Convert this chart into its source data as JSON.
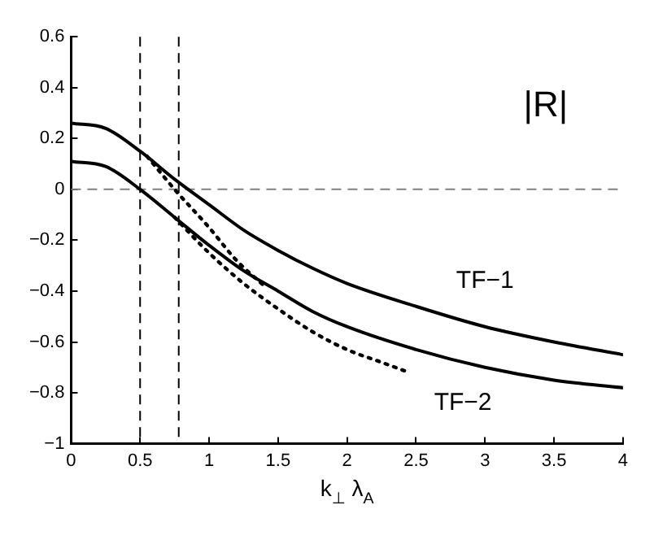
{
  "chart_data": {
    "type": "line",
    "title": "|R|",
    "xlabel": "k$_{⊥}$ λ$_{A}$",
    "xlim": [
      0,
      4
    ],
    "xticks": [
      0,
      0.5,
      1,
      1.5,
      2,
      2.5,
      3,
      3.5,
      4
    ],
    "ylim": [
      -1,
      0.6
    ],
    "yticks": [
      -1,
      -0.8,
      -0.6,
      -0.4,
      -0.2,
      0,
      0.2,
      0.4,
      0.6
    ],
    "grid": false,
    "legend": false,
    "marker": "none",
    "series": [
      {
        "color": "#000000",
        "line_style": "solid",
        "x": [
          0,
          0.25,
          0.5,
          0.75,
          1,
          1.25,
          1.5,
          1.75,
          2,
          2.5,
          3,
          3.5,
          4
        ],
        "values": [
          0.26,
          0.24,
          0.15,
          0.04,
          -0.06,
          -0.16,
          -0.24,
          -0.31,
          -0.37,
          -0.46,
          -0.54,
          -0.6,
          -0.65
        ]
      },
      {
        "color": "#000000",
        "line_style": "solid",
        "x": [
          0,
          0.25,
          0.5,
          0.75,
          1,
          1.25,
          1.5,
          1.75,
          2,
          2.5,
          3,
          3.5,
          4
        ],
        "values": [
          0.11,
          0.09,
          0,
          -0.11,
          -0.22,
          -0.32,
          -0.4,
          -0.48,
          -0.54,
          -0.63,
          -0.7,
          -0.75,
          -0.78
        ]
      },
      {
        "color": "#000000",
        "line_style": "dotted",
        "x": [
          0.55,
          0.75,
          1,
          1.2,
          1.4
        ],
        "values": [
          0.13,
          0,
          -0.15,
          -0.28,
          -0.38
        ]
      },
      {
        "color": "#000000",
        "line_style": "dotted",
        "x": [
          0.75,
          1,
          1.25,
          1.5,
          1.75,
          2,
          2.25,
          2.45
        ],
        "values": [
          -0.11,
          -0.25,
          -0.37,
          -0.47,
          -0.56,
          -0.63,
          -0.68,
          -0.72
        ]
      }
    ],
    "ref_lines": [
      {
        "axis": "x",
        "value": 0.5,
        "line_style": "dashed",
        "color": "#000000"
      },
      {
        "axis": "x",
        "value": 0.78,
        "line_style": "dashed",
        "color": "#000000"
      },
      {
        "axis": "y",
        "value": 0,
        "line_style": "dashed",
        "color": "#808080"
      }
    ],
    "annotations": [
      "TF−1",
      "TF−2"
    ]
  }
}
